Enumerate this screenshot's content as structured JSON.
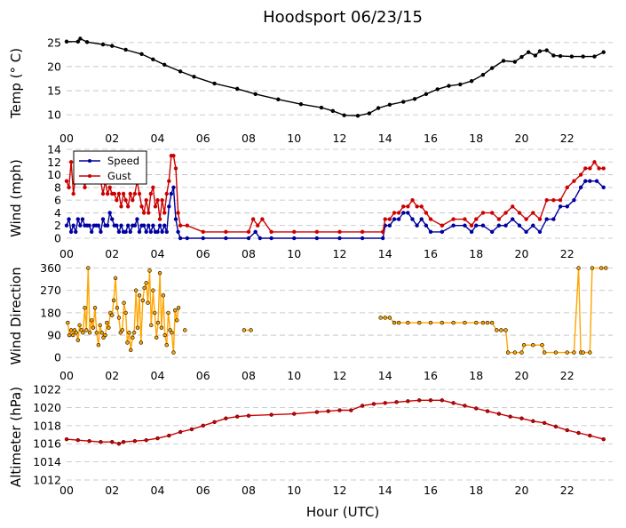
{
  "title": "Hoodsport 06/23/15",
  "xlabel": "Hour (UTC)",
  "x_ticks": [
    "00",
    "02",
    "04",
    "06",
    "08",
    "10",
    "12",
    "14",
    "16",
    "18",
    "20",
    "22"
  ],
  "chart_data": [
    {
      "id": "temp",
      "type": "line",
      "ylabel": "Temp ($^\\circ$C)",
      "ylabel_display": "Temp (° C)",
      "ylim": [
        8,
        27
      ],
      "yticks": [
        10,
        15,
        20,
        25
      ],
      "grid": true,
      "series": [
        {
          "color": "#000000",
          "marker": "dot",
          "x": [
            0,
            0.5,
            0.6,
            0.9,
            1.6,
            2.0,
            2.6,
            3.3,
            3.8,
            4.3,
            5.0,
            5.6,
            6.5,
            7.5,
            8.3,
            9.3,
            10.3,
            11.2,
            11.7,
            12.2,
            12.8,
            13.3,
            13.7,
            14.2,
            14.8,
            15.3,
            15.8,
            16.3,
            16.8,
            17.3,
            17.8,
            18.3,
            18.7,
            19.2,
            19.7,
            20.0,
            20.3,
            20.6,
            20.8,
            21.1,
            21.4,
            21.7,
            22.2,
            22.7,
            23.2,
            23.6
          ],
          "y": [
            25.2,
            25.2,
            25.8,
            25.1,
            24.6,
            24.3,
            23.5,
            22.6,
            21.5,
            20.4,
            19.0,
            17.9,
            16.5,
            15.4,
            14.3,
            13.2,
            12.2,
            11.5,
            10.8,
            9.9,
            9.8,
            10.3,
            11.4,
            12.1,
            12.7,
            13.3,
            14.3,
            15.3,
            16.0,
            16.3,
            17.0,
            18.3,
            19.7,
            21.2,
            21.0,
            22.0,
            23.0,
            22.3,
            23.2,
            23.4,
            22.3,
            22.2,
            22.1,
            22.1,
            22.1,
            23.0
          ]
        }
      ]
    },
    {
      "id": "wind",
      "type": "line",
      "ylabel": "Wind (mph)",
      "ylim": [
        0,
        14
      ],
      "yticks": [
        0,
        2,
        4,
        6,
        8,
        10,
        12,
        14
      ],
      "grid": true,
      "legend": {
        "placement": "upper-left",
        "entries": [
          {
            "name": "Speed",
            "color": "#0000a0"
          },
          {
            "name": "Gust",
            "color": "#cc0000"
          }
        ]
      },
      "series": [
        {
          "name": "Speed",
          "color": "#0000a0",
          "marker": "dot",
          "x": [
            0,
            0.1,
            0.2,
            0.3,
            0.4,
            0.5,
            0.6,
            0.7,
            0.8,
            0.9,
            1.0,
            1.1,
            1.2,
            1.3,
            1.4,
            1.5,
            1.6,
            1.7,
            1.8,
            1.9,
            2.0,
            2.1,
            2.2,
            2.3,
            2.4,
            2.5,
            2.6,
            2.7,
            2.8,
            2.9,
            3.0,
            3.1,
            3.2,
            3.3,
            3.4,
            3.5,
            3.6,
            3.7,
            3.8,
            3.9,
            4.0,
            4.1,
            4.2,
            4.3,
            4.4,
            4.5,
            4.6,
            4.7,
            4.8,
            4.9,
            5.0,
            5.3,
            6.0,
            7.0,
            8.0,
            8.3,
            8.5,
            9.0,
            10.0,
            11.0,
            12.0,
            13.0,
            13.9,
            14.0,
            14.2,
            14.4,
            14.6,
            14.8,
            15.0,
            15.2,
            15.4,
            15.6,
            15.8,
            16.0,
            16.5,
            17.0,
            17.5,
            17.8,
            18.0,
            18.3,
            18.7,
            19.0,
            19.3,
            19.6,
            19.9,
            20.2,
            20.5,
            20.8,
            21.1,
            21.4,
            21.7,
            22.0,
            22.3,
            22.6,
            22.8,
            23.0,
            23.3,
            23.6
          ],
          "y": [
            2,
            3,
            1,
            2,
            1,
            3,
            2,
            3,
            2,
            2,
            2,
            1,
            2,
            2,
            2,
            1,
            3,
            2,
            2,
            4,
            3,
            2,
            2,
            1,
            2,
            1,
            1,
            2,
            1,
            2,
            2,
            3,
            1,
            2,
            2,
            1,
            2,
            1,
            2,
            1,
            1,
            2,
            1,
            2,
            1,
            5,
            7,
            8,
            3,
            1,
            0,
            0,
            0,
            0,
            0,
            1,
            0,
            0,
            0,
            0,
            0,
            0,
            0,
            2,
            2,
            3,
            3,
            4,
            4,
            3,
            2,
            3,
            2,
            1,
            1,
            2,
            2,
            1,
            2,
            2,
            1,
            2,
            2,
            3,
            2,
            1,
            2,
            1,
            3,
            3,
            5,
            5,
            6,
            8,
            9,
            9,
            9,
            8
          ]
        },
        {
          "name": "Gust",
          "color": "#cc0000",
          "marker": "dot",
          "x": [
            0,
            0.1,
            0.2,
            0.3,
            0.4,
            0.5,
            0.6,
            0.7,
            0.8,
            0.9,
            1.0,
            1.1,
            1.2,
            1.3,
            1.4,
            1.5,
            1.6,
            1.7,
            1.8,
            1.9,
            2.0,
            2.1,
            2.2,
            2.3,
            2.4,
            2.5,
            2.6,
            2.7,
            2.8,
            2.9,
            3.0,
            3.1,
            3.2,
            3.3,
            3.4,
            3.5,
            3.6,
            3.7,
            3.8,
            3.9,
            4.0,
            4.1,
            4.2,
            4.3,
            4.4,
            4.5,
            4.6,
            4.7,
            4.8,
            4.9,
            5.0,
            5.3,
            6.0,
            7.0,
            8.0,
            8.2,
            8.4,
            8.6,
            9.0,
            10.0,
            11.0,
            12.0,
            13.0,
            13.9,
            14.0,
            14.2,
            14.4,
            14.6,
            14.8,
            15.0,
            15.2,
            15.4,
            15.6,
            15.8,
            16.0,
            16.5,
            17.0,
            17.5,
            17.8,
            18.0,
            18.3,
            18.7,
            19.0,
            19.3,
            19.6,
            19.9,
            20.2,
            20.5,
            20.8,
            21.1,
            21.4,
            21.7,
            22.0,
            22.3,
            22.6,
            22.8,
            23.0,
            23.2,
            23.4,
            23.6
          ],
          "y": [
            9,
            8,
            12,
            7,
            10,
            9,
            12,
            10,
            8,
            10,
            9,
            11,
            10,
            9,
            10,
            9,
            7,
            9,
            7,
            8,
            7,
            7,
            6,
            7,
            5,
            7,
            6,
            5,
            7,
            6,
            7,
            9,
            7,
            5,
            4,
            6,
            4,
            7,
            8,
            5,
            6,
            3,
            6,
            4,
            7,
            9,
            13,
            13,
            11,
            4,
            2,
            2,
            1,
            1,
            1,
            3,
            2,
            3,
            1,
            1,
            1,
            1,
            1,
            1,
            3,
            3,
            4,
            4,
            5,
            5,
            6,
            5,
            5,
            4,
            3,
            2,
            3,
            3,
            2,
            3,
            4,
            4,
            3,
            4,
            5,
            4,
            3,
            4,
            3,
            6,
            6,
            6,
            8,
            9,
            10,
            11,
            11,
            12,
            11,
            11
          ]
        }
      ]
    },
    {
      "id": "dir",
      "type": "line",
      "ylabel": "Wind Direction",
      "ylim": [
        -10,
        380
      ],
      "yticks": [
        0,
        90,
        180,
        270,
        360
      ],
      "grid": true,
      "series": [
        {
          "color": "#ffa500",
          "marker": "dot",
          "marker_edge": "#000000",
          "segments": [
            {
              "x": [
                0.05,
                0.12,
                0.2,
                0.28,
                0.35,
                0.42,
                0.5,
                0.57,
                0.65,
                0.72,
                0.8,
                0.87,
                0.95,
                1.02,
                1.1,
                1.17,
                1.25,
                1.32,
                1.4,
                1.47,
                1.55,
                1.62,
                1.7,
                1.77,
                1.85,
                1.92,
                2.0,
                2.07,
                2.15,
                2.22,
                2.3,
                2.37,
                2.45,
                2.52,
                2.6,
                2.67,
                2.75,
                2.82,
                2.9,
                2.97,
                3.05,
                3.12,
                3.2,
                3.27,
                3.35,
                3.42,
                3.5,
                3.57,
                3.65,
                3.72,
                3.8,
                3.87,
                3.95,
                4.02,
                4.1,
                4.17,
                4.25,
                4.32,
                4.4,
                4.47,
                4.55,
                4.62,
                4.7,
                4.77,
                4.85,
                4.92
              ],
              "y": [
                140,
                90,
                110,
                90,
                110,
                100,
                70,
                130,
                110,
                100,
                200,
                110,
                360,
                100,
                150,
                120,
                200,
                100,
                50,
                130,
                100,
                80,
                90,
                140,
                120,
                180,
                170,
                230,
                320,
                200,
                160,
                100,
                110,
                220,
                180,
                60,
                100,
                30,
                80,
                100,
                270,
                120,
                250,
                60,
                230,
                280,
                300,
                220,
                350,
                130,
                270,
                180,
                80,
                140,
                340,
                120,
                250,
                90,
                50,
                180,
                110,
                100,
                20,
                190,
                150,
                200
              ]
            },
            {
              "x": [
                5.2
              ],
              "y": [
                110
              ]
            },
            {
              "x": [
                7.8,
                8.1
              ],
              "y": [
                110,
                110
              ]
            },
            {
              "x": [
                13.8,
                14.0,
                14.2,
                14.4,
                14.6,
                15.0,
                15.5,
                16.0,
                16.5,
                17.0,
                17.5,
                18.0,
                18.3,
                18.5,
                18.7,
                18.9,
                19.1,
                19.3,
                19.4,
                19.7,
                20.0,
                20.1,
                20.5,
                20.9,
                21.0,
                21.5,
                22.0,
                22.3,
                22.5,
                22.6,
                22.7,
                23.0,
                23.1,
                23.5,
                23.7
              ],
              "y": [
                160,
                160,
                160,
                140,
                140,
                140,
                140,
                140,
                140,
                140,
                140,
                140,
                140,
                140,
                140,
                110,
                110,
                110,
                20,
                20,
                20,
                50,
                50,
                50,
                20,
                20,
                20,
                20,
                360,
                20,
                20,
                20,
                360,
                360,
                360
              ]
            }
          ]
        }
      ]
    },
    {
      "id": "alt",
      "type": "line",
      "ylabel": "Altimeter (hPa)",
      "ylim": [
        1012,
        1022.5
      ],
      "yticks": [
        1012,
        1014,
        1016,
        1018,
        1020,
        1022
      ],
      "grid": true,
      "series": [
        {
          "color": "#cc0000",
          "marker": "dot",
          "marker_edge": "#550000",
          "x": [
            0,
            0.5,
            1.0,
            1.5,
            2.0,
            2.3,
            2.5,
            3.0,
            3.5,
            4.0,
            4.5,
            5.0,
            5.5,
            6.0,
            6.5,
            7.0,
            7.5,
            8.0,
            9.0,
            10.0,
            11.0,
            11.5,
            12.0,
            12.5,
            13.0,
            13.5,
            14.0,
            14.5,
            15.0,
            15.5,
            16.0,
            16.5,
            17.0,
            17.5,
            18.0,
            18.5,
            19.0,
            19.5,
            20.0,
            20.5,
            21.0,
            21.5,
            22.0,
            22.5,
            23.0,
            23.6
          ],
          "y": [
            1016.5,
            1016.4,
            1016.3,
            1016.2,
            1016.2,
            1016.0,
            1016.2,
            1016.3,
            1016.4,
            1016.6,
            1016.9,
            1017.3,
            1017.6,
            1018.0,
            1018.4,
            1018.8,
            1019.0,
            1019.1,
            1019.2,
            1019.3,
            1019.5,
            1019.6,
            1019.7,
            1019.7,
            1020.2,
            1020.4,
            1020.5,
            1020.6,
            1020.7,
            1020.8,
            1020.8,
            1020.8,
            1020.5,
            1020.2,
            1019.9,
            1019.6,
            1019.3,
            1019.0,
            1018.8,
            1018.5,
            1018.3,
            1017.9,
            1017.5,
            1017.2,
            1016.9,
            1016.5
          ]
        }
      ]
    }
  ]
}
